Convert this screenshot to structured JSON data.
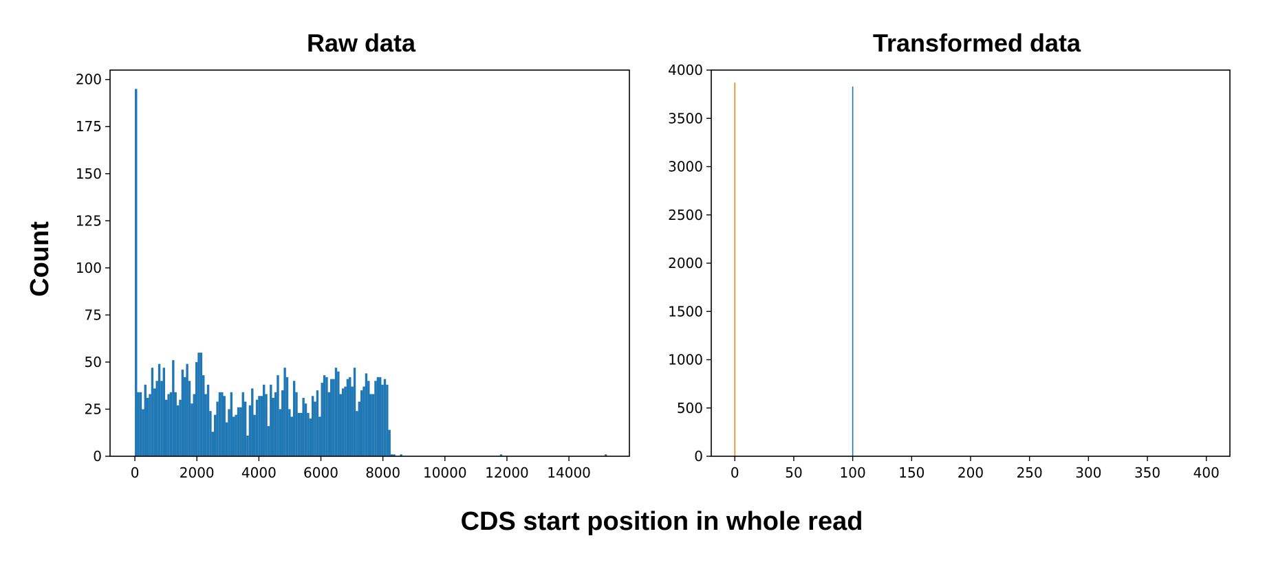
{
  "figure": {
    "supxlabel": "CDS start position in whole read",
    "supylabel": "Count"
  },
  "chart_data": [
    {
      "type": "bar",
      "title": "Raw data",
      "xlim": [
        -800,
        15950
      ],
      "ylim": [
        0,
        205
      ],
      "xticks": [
        0,
        2000,
        4000,
        6000,
        8000,
        10000,
        12000,
        14000
      ],
      "yticks": [
        0,
        25,
        50,
        75,
        100,
        125,
        150,
        175,
        200
      ],
      "grid": false,
      "series": [
        {
          "color": "#1f77b4",
          "bin_width": 75,
          "bins": [
            [
              0,
              195
            ],
            [
              75,
              34
            ],
            [
              150,
              34
            ],
            [
              225,
              25
            ],
            [
              300,
              38
            ],
            [
              375,
              31
            ],
            [
              450,
              33
            ],
            [
              525,
              47
            ],
            [
              600,
              36
            ],
            [
              675,
              40
            ],
            [
              750,
              49
            ],
            [
              825,
              40
            ],
            [
              900,
              47
            ],
            [
              975,
              30
            ],
            [
              1050,
              33
            ],
            [
              1125,
              34
            ],
            [
              1200,
              51
            ],
            [
              1275,
              34
            ],
            [
              1350,
              27
            ],
            [
              1425,
              30
            ],
            [
              1500,
              46
            ],
            [
              1575,
              42
            ],
            [
              1650,
              49
            ],
            [
              1725,
              40
            ],
            [
              1800,
              28
            ],
            [
              1875,
              33
            ],
            [
              1950,
              50
            ],
            [
              2025,
              55
            ],
            [
              2100,
              55
            ],
            [
              2175,
              43
            ],
            [
              2250,
              33
            ],
            [
              2325,
              38
            ],
            [
              2400,
              24
            ],
            [
              2475,
              13
            ],
            [
              2550,
              22
            ],
            [
              2625,
              29
            ],
            [
              2700,
              34
            ],
            [
              2775,
              34
            ],
            [
              2850,
              32
            ],
            [
              2925,
              18
            ],
            [
              3000,
              25
            ],
            [
              3075,
              34
            ],
            [
              3150,
              21
            ],
            [
              3225,
              22
            ],
            [
              3300,
              26
            ],
            [
              3375,
              26
            ],
            [
              3450,
              34
            ],
            [
              3525,
              29
            ],
            [
              3600,
              11
            ],
            [
              3675,
              27
            ],
            [
              3750,
              36
            ],
            [
              3825,
              22
            ],
            [
              3900,
              30
            ],
            [
              3975,
              32
            ],
            [
              4050,
              32
            ],
            [
              4125,
              38
            ],
            [
              4200,
              33
            ],
            [
              4275,
              16
            ],
            [
              4350,
              38
            ],
            [
              4425,
              31
            ],
            [
              4500,
              34
            ],
            [
              4575,
              43
            ],
            [
              4650,
              25
            ],
            [
              4725,
              35
            ],
            [
              4800,
              47
            ],
            [
              4875,
              42
            ],
            [
              4950,
              25
            ],
            [
              5025,
              21
            ],
            [
              5100,
              40
            ],
            [
              5175,
              34
            ],
            [
              5250,
              23
            ],
            [
              5325,
              23
            ],
            [
              5400,
              31
            ],
            [
              5475,
              28
            ],
            [
              5550,
              23
            ],
            [
              5625,
              20
            ],
            [
              5700,
              32
            ],
            [
              5775,
              29
            ],
            [
              5850,
              35
            ],
            [
              5925,
              21
            ],
            [
              6000,
              39
            ],
            [
              6075,
              43
            ],
            [
              6150,
              42
            ],
            [
              6225,
              34
            ],
            [
              6300,
              41
            ],
            [
              6375,
              41
            ],
            [
              6450,
              47
            ],
            [
              6525,
              45
            ],
            [
              6600,
              33
            ],
            [
              6675,
              36
            ],
            [
              6750,
              37
            ],
            [
              6825,
              41
            ],
            [
              6900,
              42
            ],
            [
              6975,
              37
            ],
            [
              7050,
              47
            ],
            [
              7125,
              24
            ],
            [
              7200,
              29
            ],
            [
              7275,
              35
            ],
            [
              7350,
              37
            ],
            [
              7425,
              44
            ],
            [
              7500,
              40
            ],
            [
              7575,
              33
            ],
            [
              7650,
              33
            ],
            [
              7725,
              40
            ],
            [
              7800,
              42
            ],
            [
              7875,
              42
            ],
            [
              7950,
              38
            ],
            [
              8025,
              41
            ],
            [
              8100,
              38
            ],
            [
              8175,
              14
            ],
            [
              8250,
              1
            ],
            [
              8325,
              1
            ],
            [
              8550,
              1
            ],
            [
              11775,
              1
            ],
            [
              15150,
              1
            ]
          ]
        }
      ]
    },
    {
      "type": "bar",
      "title": "Transformed data",
      "xlim": [
        -20,
        420
      ],
      "ylim": [
        0,
        4000
      ],
      "xticks": [
        0,
        50,
        100,
        150,
        200,
        250,
        300,
        350,
        400
      ],
      "yticks": [
        0,
        500,
        1000,
        1500,
        2000,
        2500,
        3000,
        3500,
        4000
      ],
      "grid": false,
      "series": [
        {
          "color": "#1f77b4",
          "x": [
            100
          ],
          "values": [
            3830
          ]
        },
        {
          "color": "#ff7f0e",
          "x": [
            0
          ],
          "values": [
            3870
          ]
        }
      ]
    }
  ]
}
